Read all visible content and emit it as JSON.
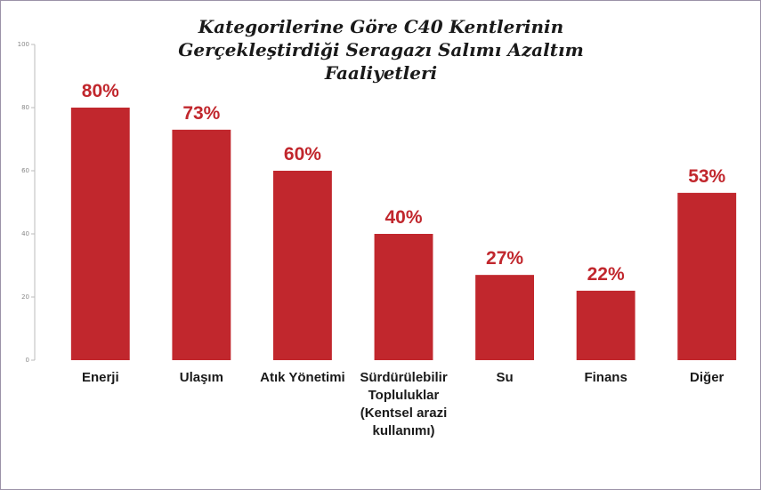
{
  "chart_data": {
    "type": "bar",
    "title": "Kategorilerine Göre C40 Kentlerinin Gerçekleştirdiği Seragazı Salımı Azaltım Faaliyetleri",
    "categories": [
      "Enerji",
      "Ulaşım",
      "Atık Yönetimi",
      "Sürdürülebilir Topluluklar (Kentsel arazi kullanımı)",
      "Su",
      "Finans",
      "Diğer"
    ],
    "values": [
      80,
      73,
      60,
      40,
      27,
      22,
      53
    ],
    "value_labels": [
      "80%",
      "73%",
      "60%",
      "40%",
      "27%",
      "22%",
      "53%"
    ],
    "color": "#c1272d",
    "ylim": [
      0,
      100
    ],
    "yticks": [
      0,
      20,
      40,
      60,
      80,
      100
    ],
    "grid": false
  }
}
